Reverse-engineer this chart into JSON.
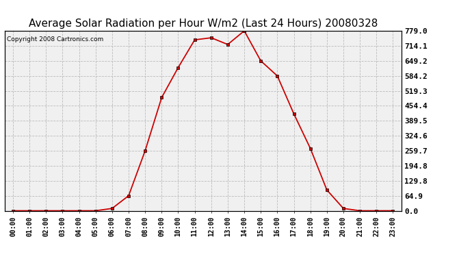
{
  "title": "Average Solar Radiation per Hour W/m2 (Last 24 Hours) 20080328",
  "copyright": "Copyright 2008 Cartronics.com",
  "hours": [
    "00:00",
    "01:00",
    "02:00",
    "03:00",
    "04:00",
    "05:00",
    "06:00",
    "07:00",
    "08:00",
    "09:00",
    "10:00",
    "11:00",
    "12:00",
    "13:00",
    "14:00",
    "15:00",
    "16:00",
    "17:00",
    "18:00",
    "19:00",
    "20:00",
    "21:00",
    "22:00",
    "23:00"
  ],
  "values": [
    0,
    0,
    0,
    0,
    0,
    0,
    10,
    65,
    260,
    490,
    620,
    740,
    749,
    720,
    779,
    649,
    584,
    420,
    270,
    90,
    10,
    0,
    0,
    0
  ],
  "line_color": "#cc0000",
  "marker": "s",
  "marker_size": 2.5,
  "background_color": "#ffffff",
  "plot_bg_color": "#f0f0f0",
  "grid_color": "#bbbbbb",
  "title_fontsize": 11,
  "copyright_fontsize": 6.5,
  "ytick_fontsize": 8,
  "xtick_fontsize": 7,
  "yticks": [
    0.0,
    64.9,
    129.8,
    194.8,
    259.7,
    324.6,
    389.5,
    454.4,
    519.3,
    584.2,
    649.2,
    714.1,
    779.0
  ],
  "ymax": 779.0,
  "ymin": 0.0
}
